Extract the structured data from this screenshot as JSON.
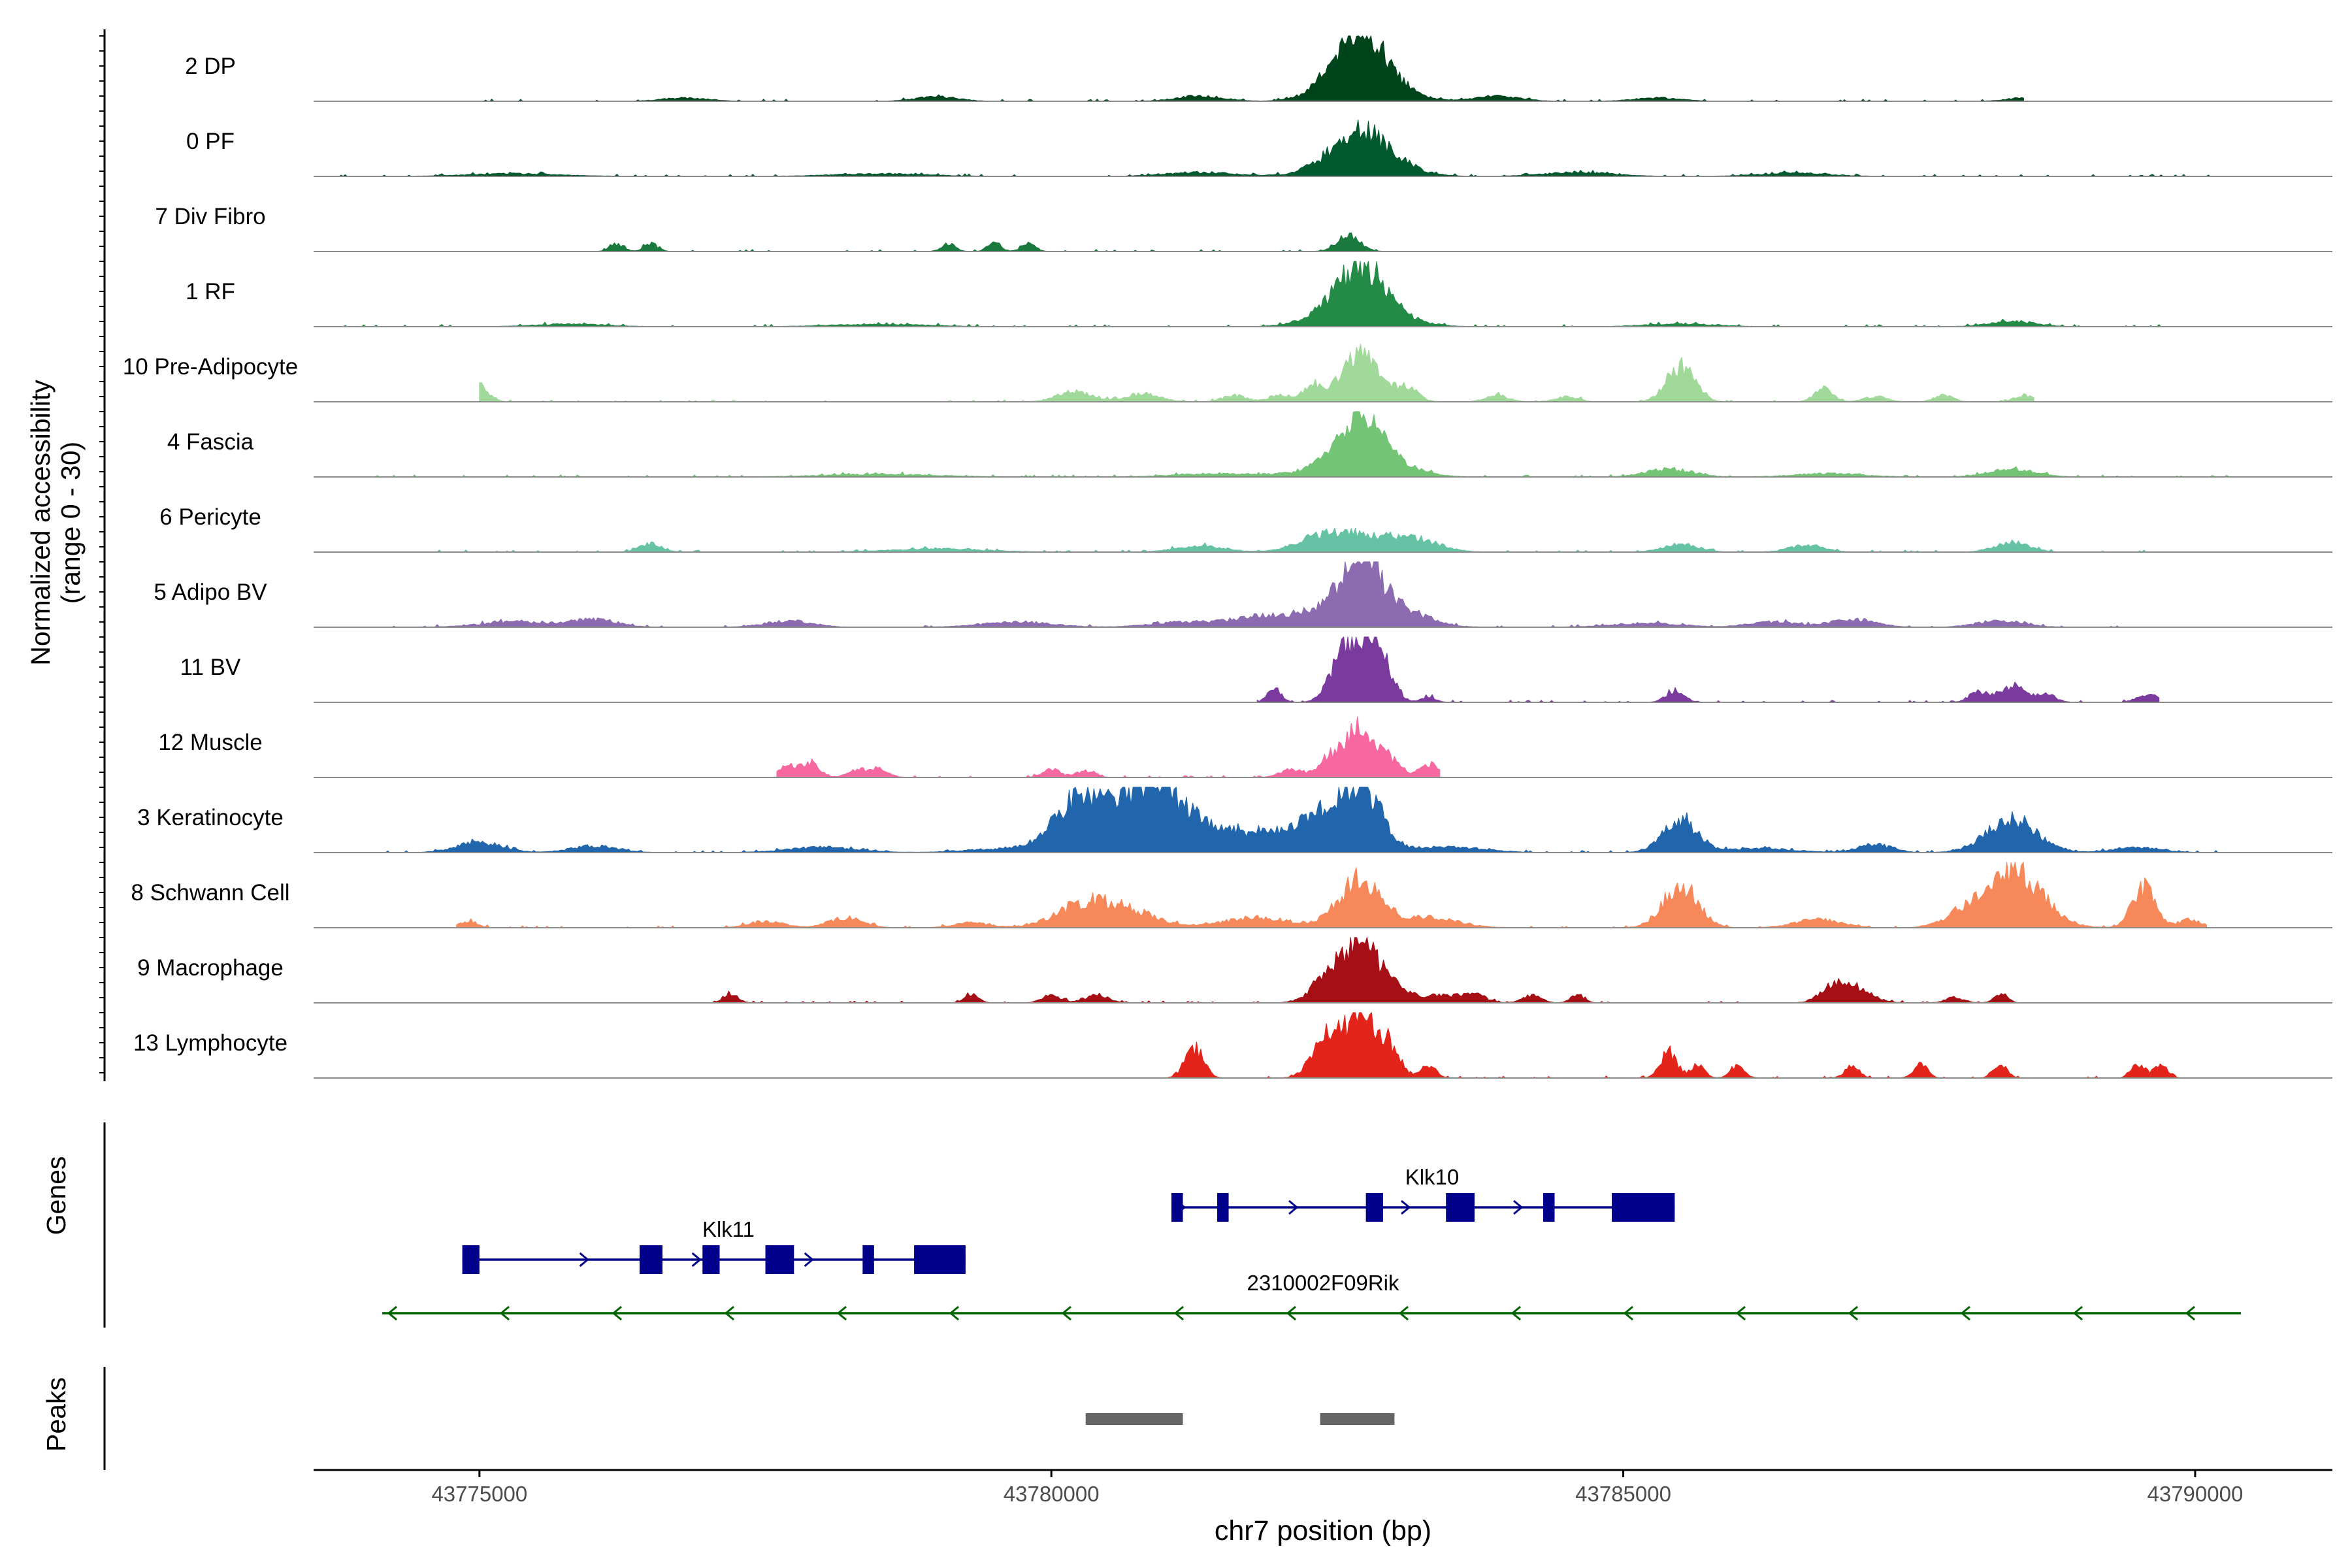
{
  "chart_data": {
    "type": "coverage",
    "title": "",
    "xlabel": "chr7 position (bp)",
    "ylabel_line1": "Normalized accessibility",
    "ylabel_line2": "(range 0 - 30)",
    "y_range": [
      0,
      30
    ],
    "xlim": [
      43773550,
      43791200
    ],
    "x_ticks": [
      43775000,
      43780000,
      43785000,
      43790000
    ],
    "x_tick_labels": [
      "43775000",
      "43780000",
      "43785000",
      "43790000"
    ],
    "tracks": [
      {
        "name": "2 DP",
        "color": "#00441b",
        "start": 43775000,
        "end": 43788500,
        "peaks": [
          [
            43782700,
            0.95,
            200
          ],
          [
            43782450,
            0.15,
            220
          ],
          [
            43782950,
            0.15,
            250
          ],
          [
            43779000,
            0.07,
            180
          ],
          [
            43781300,
            0.08,
            200
          ],
          [
            43783900,
            0.08,
            200
          ],
          [
            43776800,
            0.05,
            200
          ],
          [
            43785300,
            0.05,
            200
          ],
          [
            43788500,
            0.05,
            150
          ]
        ]
      },
      {
        "name": "0 PF",
        "color": "#005a2e",
        "start": 43773700,
        "end": 43790300,
        "peaks": [
          [
            43782700,
            0.55,
            220
          ],
          [
            43782450,
            0.12,
            250
          ],
          [
            43782950,
            0.15,
            250
          ],
          [
            43781300,
            0.06,
            300
          ],
          [
            43784600,
            0.06,
            300
          ],
          [
            43786500,
            0.05,
            300
          ],
          [
            43775300,
            0.04,
            400
          ],
          [
            43778500,
            0.04,
            400
          ]
        ]
      },
      {
        "name": "7 Div Fibro",
        "color": "#1a7a3e",
        "start": 43776000,
        "end": 43783000,
        "peaks": [
          [
            43782600,
            0.25,
            100
          ],
          [
            43776200,
            0.12,
            60
          ],
          [
            43776500,
            0.12,
            60
          ],
          [
            43779100,
            0.12,
            60
          ],
          [
            43779500,
            0.12,
            60
          ],
          [
            43779800,
            0.12,
            60
          ]
        ]
      },
      {
        "name": "1 RF",
        "color": "#238b45",
        "start": 43773700,
        "end": 43789800,
        "peaks": [
          [
            43782700,
            0.75,
            200
          ],
          [
            43782450,
            0.15,
            250
          ],
          [
            43782950,
            0.15,
            250
          ],
          [
            43788400,
            0.08,
            200
          ],
          [
            43778500,
            0.04,
            400
          ],
          [
            43785500,
            0.04,
            300
          ],
          [
            43775800,
            0.04,
            300
          ]
        ]
      },
      {
        "name": "10 Pre-Adipocyte",
        "color": "#a1d99b",
        "start": 43775000,
        "end": 43788600,
        "peaks": [
          [
            43782700,
            0.75,
            150
          ],
          [
            43785500,
            0.55,
            120
          ],
          [
            43775000,
            0.25,
            80
          ],
          [
            43782300,
            0.25,
            100
          ],
          [
            43783100,
            0.22,
            100
          ],
          [
            43786750,
            0.2,
            80
          ],
          [
            43780200,
            0.15,
            150
          ],
          [
            43780800,
            0.12,
            150
          ],
          [
            43781600,
            0.1,
            100
          ],
          [
            43782000,
            0.1,
            100
          ],
          [
            43783900,
            0.1,
            100
          ],
          [
            43784500,
            0.08,
            100
          ],
          [
            43788500,
            0.1,
            80
          ],
          [
            43787800,
            0.1,
            80
          ],
          [
            43787200,
            0.08,
            100
          ]
        ]
      },
      {
        "name": "4 Fascia",
        "color": "#74c476",
        "start": 43774000,
        "end": 43790300,
        "peaks": [
          [
            43782700,
            0.7,
            180
          ],
          [
            43782450,
            0.15,
            250
          ],
          [
            43782950,
            0.18,
            250
          ],
          [
            43785400,
            0.12,
            200
          ],
          [
            43788400,
            0.12,
            200
          ],
          [
            43781500,
            0.05,
            400
          ],
          [
            43786800,
            0.05,
            300
          ],
          [
            43778500,
            0.04,
            500
          ]
        ]
      },
      {
        "name": "6 Pericyte",
        "color": "#66c2a4",
        "start": 43774000,
        "end": 43789600,
        "peaks": [
          [
            43782700,
            0.25,
            250
          ],
          [
            43782300,
            0.18,
            200
          ],
          [
            43783200,
            0.18,
            200
          ],
          [
            43785500,
            0.12,
            150
          ],
          [
            43788400,
            0.15,
            150
          ],
          [
            43776500,
            0.12,
            100
          ],
          [
            43781300,
            0.1,
            200
          ],
          [
            43786600,
            0.1,
            150
          ],
          [
            43779000,
            0.05,
            400
          ]
        ]
      },
      {
        "name": "5 Adipo BV",
        "color": "#8c6bb1",
        "start": 43774000,
        "end": 43789400,
        "peaks": [
          [
            43782700,
            1.0,
            150
          ],
          [
            43782350,
            0.25,
            250
          ],
          [
            43783000,
            0.3,
            250
          ],
          [
            43781800,
            0.15,
            200
          ],
          [
            43776000,
            0.12,
            200
          ],
          [
            43787000,
            0.12,
            200
          ],
          [
            43788300,
            0.1,
            200
          ],
          [
            43775300,
            0.08,
            300
          ],
          [
            43777700,
            0.1,
            200
          ],
          [
            43786300,
            0.08,
            200
          ],
          [
            43779700,
            0.08,
            300
          ],
          [
            43781200,
            0.08,
            300
          ],
          [
            43785200,
            0.06,
            300
          ]
        ]
      },
      {
        "name": "11 BV",
        "color": "#7a3a9e",
        "start": 43781800,
        "end": 43789700,
        "peaks": [
          [
            43782700,
            1.0,
            130
          ],
          [
            43782500,
            0.35,
            100
          ],
          [
            43782900,
            0.45,
            100
          ],
          [
            43781950,
            0.2,
            60
          ],
          [
            43783300,
            0.08,
            60
          ],
          [
            43785450,
            0.18,
            80
          ],
          [
            43788400,
            0.25,
            120
          ],
          [
            43788100,
            0.15,
            80
          ],
          [
            43788700,
            0.12,
            80
          ],
          [
            43789600,
            0.12,
            100
          ]
        ]
      },
      {
        "name": "12 Muscle",
        "color": "#f768a1",
        "start": 43777600,
        "end": 43783400,
        "peaks": [
          [
            43782700,
            0.8,
            100
          ],
          [
            43782450,
            0.35,
            100
          ],
          [
            43782950,
            0.3,
            100
          ],
          [
            43783300,
            0.2,
            80
          ],
          [
            43777700,
            0.18,
            80
          ],
          [
            43777900,
            0.2,
            80
          ],
          [
            43778300,
            0.12,
            80
          ],
          [
            43778500,
            0.12,
            80
          ],
          [
            43780000,
            0.12,
            80
          ],
          [
            43780300,
            0.1,
            80
          ],
          [
            43782100,
            0.12,
            100
          ]
        ]
      },
      {
        "name": "3 Keratinocyte",
        "color": "#2166ac",
        "start": 43774000,
        "end": 43790300,
        "peaks": [
          [
            43780300,
            0.9,
            250
          ],
          [
            43780900,
            1.0,
            230
          ],
          [
            43782700,
            1.0,
            180
          ],
          [
            43782350,
            0.45,
            200
          ],
          [
            43781400,
            0.3,
            250
          ],
          [
            43781900,
            0.25,
            250
          ],
          [
            43785500,
            0.5,
            150
          ],
          [
            43788400,
            0.5,
            220
          ],
          [
            43775000,
            0.15,
            200
          ],
          [
            43776000,
            0.1,
            200
          ],
          [
            43787200,
            0.12,
            150
          ],
          [
            43789500,
            0.08,
            200
          ],
          [
            43778000,
            0.08,
            300
          ],
          [
            43783500,
            0.08,
            300
          ],
          [
            43786200,
            0.06,
            300
          ],
          [
            43779500,
            0.05,
            300
          ]
        ]
      },
      {
        "name": "8 Schwann Cell",
        "color": "#f7885a",
        "start": 43774800,
        "end": 43790100,
        "peaks": [
          [
            43788400,
            0.9,
            250
          ],
          [
            43782700,
            0.75,
            180
          ],
          [
            43785500,
            0.65,
            150
          ],
          [
            43789550,
            0.6,
            100
          ],
          [
            43780300,
            0.35,
            250
          ],
          [
            43780700,
            0.2,
            250
          ],
          [
            43781800,
            0.15,
            300
          ],
          [
            43783300,
            0.15,
            250
          ],
          [
            43786700,
            0.12,
            200
          ],
          [
            43778200,
            0.15,
            150
          ],
          [
            43777500,
            0.1,
            150
          ],
          [
            43774900,
            0.1,
            80
          ],
          [
            43789950,
            0.12,
            100
          ],
          [
            43787900,
            0.12,
            150
          ],
          [
            43779300,
            0.08,
            150
          ]
        ]
      },
      {
        "name": "9 Macrophage",
        "color": "#a50f15",
        "start": 43777000,
        "end": 43788500,
        "peaks": [
          [
            43782700,
            0.8,
            130
          ],
          [
            43782450,
            0.45,
            150
          ],
          [
            43782950,
            0.3,
            150
          ],
          [
            43777200,
            0.15,
            60
          ],
          [
            43779300,
            0.15,
            60
          ],
          [
            43780000,
            0.12,
            80
          ],
          [
            43780400,
            0.12,
            100
          ],
          [
            43783400,
            0.12,
            150
          ],
          [
            43783700,
            0.12,
            100
          ],
          [
            43784200,
            0.12,
            80
          ],
          [
            43784600,
            0.12,
            60
          ],
          [
            43787000,
            0.25,
            150
          ],
          [
            43786800,
            0.15,
            100
          ],
          [
            43788300,
            0.12,
            60
          ],
          [
            43787900,
            0.08,
            80
          ]
        ]
      },
      {
        "name": "13 Lymphocyte",
        "color": "#e3241b",
        "start": 43781000,
        "end": 43789900,
        "peaks": [
          [
            43782700,
            0.95,
            130
          ],
          [
            43782400,
            0.6,
            120
          ],
          [
            43782950,
            0.45,
            100
          ],
          [
            43781250,
            0.45,
            80
          ],
          [
            43783300,
            0.2,
            60
          ],
          [
            43785400,
            0.4,
            70
          ],
          [
            43785650,
            0.2,
            60
          ],
          [
            43786000,
            0.2,
            60
          ],
          [
            43787000,
            0.2,
            60
          ],
          [
            43787600,
            0.2,
            60
          ],
          [
            43788300,
            0.2,
            60
          ],
          [
            43789500,
            0.2,
            60
          ],
          [
            43789700,
            0.2,
            60
          ]
        ]
      }
    ],
    "genes": [
      {
        "name": "Klk10",
        "strand": "+",
        "start": 43781050,
        "end": 43785450,
        "color": "#00008b",
        "exons": [
          [
            43781050,
            43781150
          ],
          [
            43781450,
            43781550
          ],
          [
            43782750,
            43782900
          ],
          [
            43783450,
            43783700
          ],
          [
            43784300,
            43784400
          ],
          [
            43784900,
            43785450
          ]
        ]
      },
      {
        "name": "Klk11",
        "strand": "+",
        "start": 43774850,
        "end": 43779250,
        "color": "#00008b",
        "exons": [
          [
            43774850,
            43775000
          ],
          [
            43776400,
            43776600
          ],
          [
            43776950,
            43777100
          ],
          [
            43777500,
            43777750
          ],
          [
            43778350,
            43778450
          ],
          [
            43778800,
            43779250
          ]
        ]
      },
      {
        "name": "2310002F09Rik",
        "strand": "-",
        "start": 43774150,
        "end": 43790400,
        "color": "#006400",
        "exons": []
      }
    ],
    "peaks_track": [
      [
        43780300,
        43781150
      ],
      [
        43782350,
        43783000
      ]
    ],
    "peaks_color": "#666666",
    "gene_panel_label": "Genes",
    "peaks_panel_label": "Peaks"
  }
}
